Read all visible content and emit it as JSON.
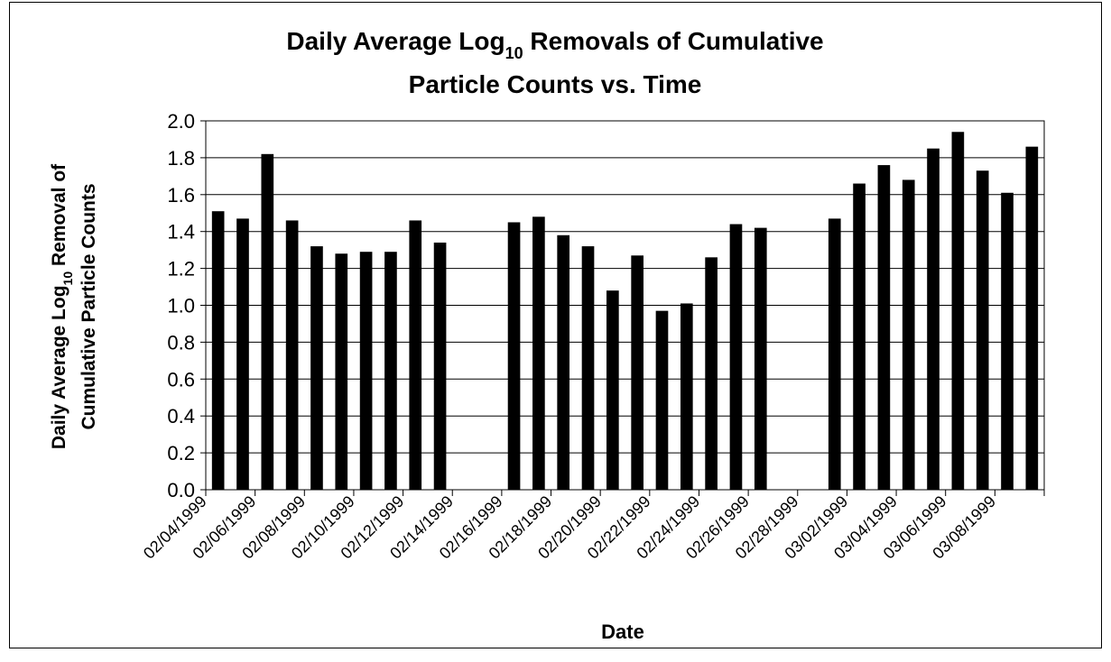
{
  "chart_data": {
    "type": "bar",
    "title": [
      [
        "Daily Average Log",
        "10",
        " Removals of Cumulative"
      ],
      [
        "Particle Counts vs. Time"
      ]
    ],
    "ylabel": [
      [
        "Daily Average Log",
        "10",
        " Removal of"
      ],
      [
        "Cumulative Particle Counts"
      ]
    ],
    "xlabel": "Date",
    "categories": [
      "02/04/1999",
      null,
      "02/06/1999",
      null,
      "02/08/1999",
      null,
      "02/10/1999",
      null,
      "02/12/1999",
      null,
      "02/14/1999",
      null,
      "02/16/1999",
      null,
      "02/18/1999",
      null,
      "02/20/1999",
      null,
      "02/22/1999",
      null,
      "02/24/1999",
      null,
      "02/26/1999",
      null,
      "02/28/1999",
      null,
      "03/02/1999",
      null,
      "03/04/1999",
      null,
      "03/06/1999",
      null,
      "03/08/1999",
      null
    ],
    "values": [
      1.51,
      1.47,
      1.82,
      1.46,
      1.32,
      1.28,
      1.29,
      1.29,
      1.46,
      1.34,
      null,
      null,
      1.45,
      1.48,
      1.38,
      1.32,
      1.08,
      1.27,
      0.97,
      1.01,
      1.26,
      1.44,
      1.42,
      null,
      null,
      1.47,
      1.66,
      1.76,
      1.68,
      1.85,
      1.94,
      1.73,
      1.61,
      1.86
    ],
    "color": "#000000",
    "ylim": [
      0,
      2
    ],
    "yticks": [
      {
        "value": 0,
        "label": "0.0"
      },
      0.2,
      0.4,
      0.6,
      0.8,
      {
        "value": 1,
        "label": "1.0"
      },
      1.2,
      1.4,
      1.6,
      1.8,
      {
        "value": 2,
        "label": "2.0"
      }
    ],
    "grid": true
  }
}
